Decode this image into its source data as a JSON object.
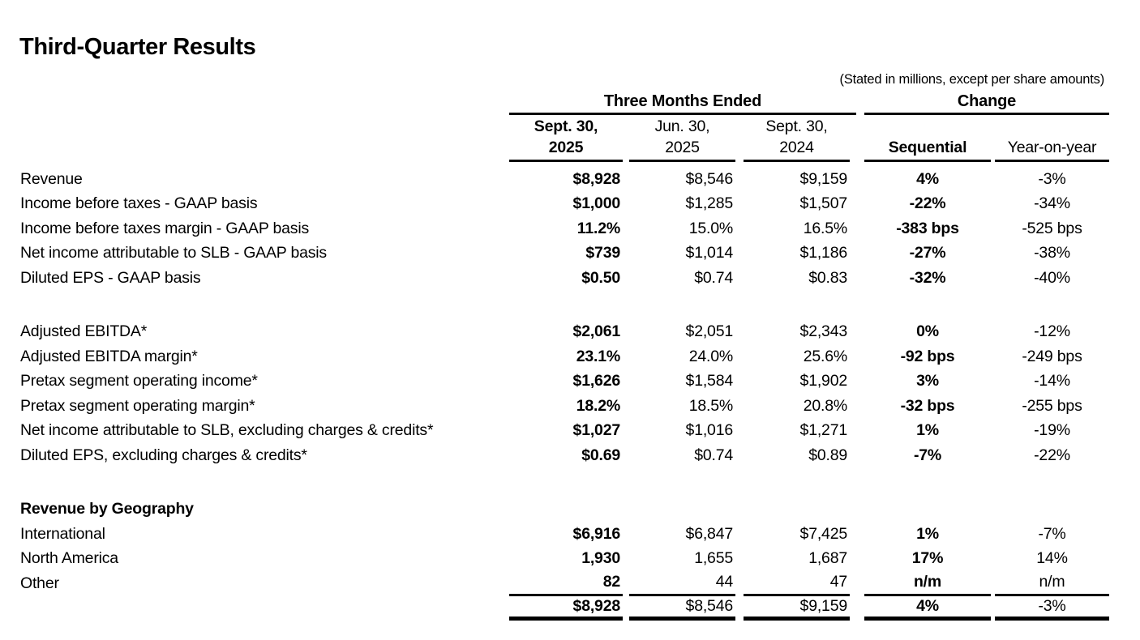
{
  "page": {
    "title": "Third-Quarter Results",
    "note": "(Stated in millions, except per share amounts)"
  },
  "table": {
    "groups": [
      {
        "label": "Three Months Ended"
      },
      {
        "label": "Change"
      }
    ],
    "columns": [
      {
        "id": "sept-30-2025",
        "line1": "Sept. 30,",
        "line2": "2025",
        "bold": true
      },
      {
        "id": "jun-30-2025",
        "line1": "Jun. 30,",
        "line2": "2025",
        "bold": false
      },
      {
        "id": "sept-30-2024",
        "line1": "Sept. 30,",
        "line2": "2024",
        "bold": false
      },
      {
        "id": "sequential",
        "line1": "",
        "line2": "Sequential",
        "bold": true
      },
      {
        "id": "year-on-year",
        "line1": "",
        "line2": "Year-on-year",
        "bold": false
      }
    ],
    "rows": [
      {
        "kind": "data",
        "label": "Revenue",
        "values": [
          "$8,928",
          "$8,546",
          "$9,159",
          "4%",
          "-3%"
        ]
      },
      {
        "kind": "data",
        "label": "Income before taxes - GAAP basis",
        "values": [
          "$1,000",
          "$1,285",
          "$1,507",
          "-22%",
          "-34%"
        ]
      },
      {
        "kind": "data",
        "label": "Income before taxes margin - GAAP basis",
        "values": [
          "11.2%",
          "15.0%",
          "16.5%",
          "-383 bps",
          "-525 bps"
        ]
      },
      {
        "kind": "data",
        "label": "Net income attributable to SLB - GAAP basis",
        "values": [
          "$739",
          "$1,014",
          "$1,186",
          "-27%",
          "-38%"
        ]
      },
      {
        "kind": "data",
        "label": "Diluted EPS - GAAP basis",
        "values": [
          "$0.50",
          "$0.74",
          "$0.83",
          "-32%",
          "-40%"
        ]
      },
      {
        "kind": "blank"
      },
      {
        "kind": "data",
        "label": "Adjusted EBITDA*",
        "values": [
          "$2,061",
          "$2,051",
          "$2,343",
          "0%",
          "-12%"
        ]
      },
      {
        "kind": "data",
        "label": "Adjusted EBITDA margin*",
        "values": [
          "23.1%",
          "24.0%",
          "25.6%",
          "-92 bps",
          "-249 bps"
        ]
      },
      {
        "kind": "data",
        "label": "Pretax segment operating income*",
        "values": [
          "$1,626",
          "$1,584",
          "$1,902",
          "3%",
          "-14%"
        ]
      },
      {
        "kind": "data",
        "label": "Pretax segment operating margin*",
        "values": [
          "18.2%",
          "18.5%",
          "20.8%",
          "-32 bps",
          "-255 bps"
        ]
      },
      {
        "kind": "data",
        "label": "Net income attributable to SLB, excluding charges & credits*",
        "values": [
          "$1,027",
          "$1,016",
          "$1,271",
          "1%",
          "-19%"
        ]
      },
      {
        "kind": "data",
        "label": "Diluted EPS, excluding charges & credits*",
        "values": [
          "$0.69",
          "$0.74",
          "$0.89",
          "-7%",
          "-22%"
        ]
      },
      {
        "kind": "blank"
      },
      {
        "kind": "section",
        "label": "Revenue by Geography"
      },
      {
        "kind": "data",
        "label": "International",
        "values": [
          "$6,916",
          "$6,847",
          "$7,425",
          "1%",
          "-7%"
        ]
      },
      {
        "kind": "data",
        "label": "North America",
        "values": [
          "1,930",
          "1,655",
          "1,687",
          "17%",
          "14%"
        ]
      },
      {
        "kind": "data",
        "label": "Other",
        "values": [
          "82",
          "44",
          "47",
          "n/m",
          "n/m"
        ],
        "rule_below": true
      },
      {
        "kind": "total",
        "label": "",
        "values": [
          "$8,928",
          "$8,546",
          "$9,159",
          "4%",
          "-3%"
        ]
      }
    ],
    "colors": {
      "text": "#000000",
      "background": "#ffffff",
      "rule": "#000000"
    }
  }
}
